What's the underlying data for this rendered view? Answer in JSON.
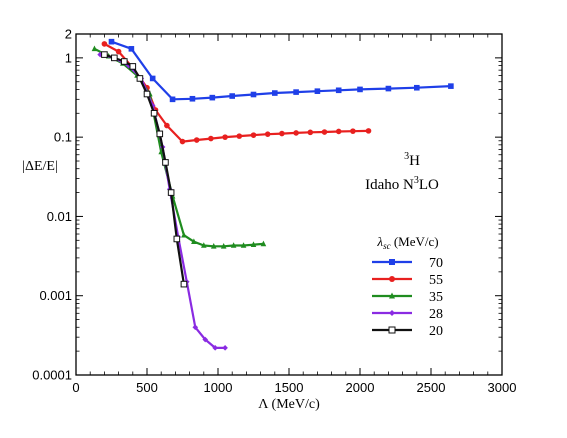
{
  "chart_data": {
    "type": "line",
    "title": "",
    "xlabel": "Λ (MeV/c)",
    "ylabel": "|ΔE/E|",
    "xlim": [
      0,
      3000
    ],
    "ylim": [
      0.0001,
      2
    ],
    "yscale": "log",
    "x_ticks": [
      0,
      500,
      1000,
      1500,
      2000,
      2500,
      3000
    ],
    "x_tick_labels": [
      "0",
      "500",
      "1000",
      "1500",
      "2000",
      "2500",
      "3000"
    ],
    "y_ticks": [
      0.0001,
      0.001,
      0.01,
      0.1,
      1,
      2
    ],
    "y_tick_labels": [
      "0.0001",
      "0.001",
      "0.01",
      "0.1",
      "1",
      "2"
    ],
    "grid": false,
    "annotation": {
      "nucleus_mass": "3",
      "nucleus_symbol": "H",
      "potential_prefix": "Idaho N",
      "potential_sup": "3",
      "potential_suffix": "LO"
    },
    "legend": {
      "title": "λsc (MeV/c)",
      "title_main": "λ",
      "title_sub": "sc",
      "title_rest": " (MeV/c)",
      "placement": "right"
    },
    "series": [
      {
        "name": "70",
        "color": "#1f3fe8",
        "marker": "square-filled",
        "x": [
          250,
          390,
          540,
          680,
          820,
          960,
          1100,
          1250,
          1400,
          1550,
          1700,
          1850,
          2000,
          2200,
          2400,
          2640
        ],
        "y": [
          1.6,
          1.3,
          0.55,
          0.3,
          0.305,
          0.315,
          0.33,
          0.345,
          0.36,
          0.37,
          0.38,
          0.39,
          0.4,
          0.41,
          0.42,
          0.44
        ]
      },
      {
        "name": "55",
        "color": "#e8201f",
        "marker": "circle-filled",
        "x": [
          200,
          300,
          400,
          500,
          560,
          640,
          750,
          850,
          950,
          1050,
          1150,
          1250,
          1350,
          1450,
          1550,
          1650,
          1750,
          1850,
          1950,
          2060
        ],
        "y": [
          1.5,
          1.2,
          0.75,
          0.42,
          0.22,
          0.14,
          0.088,
          0.092,
          0.096,
          0.1,
          0.103,
          0.106,
          0.109,
          0.111,
          0.113,
          0.115,
          0.116,
          0.118,
          0.119,
          0.12
        ]
      },
      {
        "name": "35",
        "color": "#1f8c1f",
        "marker": "triangle-filled",
        "x": [
          130,
          230,
          330,
          430,
          520,
          600,
          680,
          760,
          830,
          900,
          970,
          1040,
          1110,
          1180,
          1250,
          1320
        ],
        "y": [
          1.3,
          1.05,
          0.85,
          0.6,
          0.35,
          0.065,
          0.018,
          0.0058,
          0.0048,
          0.0043,
          0.0042,
          0.0042,
          0.0043,
          0.0043,
          0.0044,
          0.0045
        ]
      },
      {
        "name": "28",
        "color": "#8a2be2",
        "marker": "diamond-filled",
        "x": [
          170,
          270,
          370,
          460,
          540,
          610,
          660,
          720,
          780,
          840,
          910,
          980,
          1050
        ],
        "y": [
          1.1,
          1.0,
          0.8,
          0.55,
          0.25,
          0.075,
          0.022,
          0.0055,
          0.0015,
          0.0004,
          0.00028,
          0.00022,
          0.00022
        ]
      },
      {
        "name": "20",
        "color": "#111111",
        "marker": "square-open",
        "x": [
          200,
          270,
          340,
          400,
          450,
          500,
          550,
          590,
          630,
          670,
          710,
          760
        ],
        "y": [
          1.1,
          1.0,
          0.9,
          0.78,
          0.55,
          0.35,
          0.2,
          0.11,
          0.048,
          0.02,
          0.0052,
          0.0014
        ]
      }
    ]
  }
}
